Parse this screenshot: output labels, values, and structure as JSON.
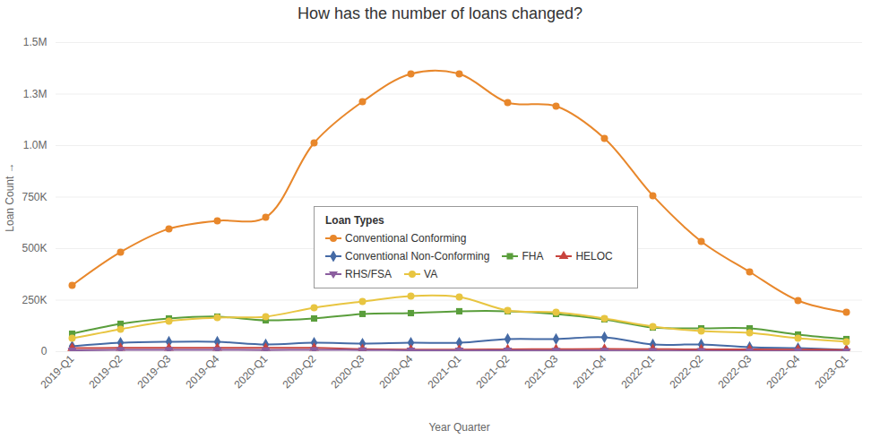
{
  "chart_data": {
    "type": "line",
    "title": "How has the number of loans changed?",
    "x_label": "Year Quarter",
    "y_label": "Loan Count",
    "legend_title": "Loan Types",
    "legend": "center",
    "grid": true,
    "categories": [
      "2019-Q1",
      "2019-Q2",
      "2019-Q3",
      "2019-Q4",
      "2020-Q1",
      "2020-Q2",
      "2020-Q3",
      "2020-Q4",
      "2021-Q1",
      "2021-Q2",
      "2021-Q3",
      "2021-Q4",
      "2022-Q1",
      "2022-Q2",
      "2022-Q3",
      "2022-Q4",
      "2023-Q1"
    ],
    "ylim": [
      0,
      1500000
    ],
    "yticks": [
      0,
      {
        "value": 250000,
        "label": "250K"
      },
      {
        "value": 500000,
        "label": "500K"
      },
      {
        "value": 750000,
        "label": "750K"
      },
      {
        "value": 1000000,
        "label": "1.0M"
      },
      {
        "value": 1250000,
        "label": "1.3M"
      },
      {
        "value": 1500000,
        "label": "1.5M"
      }
    ],
    "series": [
      {
        "name": "Conventional Conforming",
        "color": "#e8872b",
        "marker": "circle",
        "values": [
          322000,
          483000,
          596000,
          635000,
          652000,
          1013000,
          1213000,
          1348000,
          1348000,
          1209000,
          1191000,
          1035000,
          757000,
          535000,
          387000,
          248000,
          191000
        ]
      },
      {
        "name": "Conventional Non-Conforming",
        "color": "#456aa5",
        "marker": "diamond",
        "values": [
          26000,
          43000,
          48000,
          48000,
          35000,
          43000,
          39000,
          43000,
          43000,
          61000,
          61000,
          70000,
          35000,
          35000,
          22000,
          17000,
          9000
        ]
      },
      {
        "name": "FHA",
        "color": "#5a9e3c",
        "marker": "square",
        "values": [
          87000,
          135000,
          161000,
          170000,
          152000,
          161000,
          183000,
          187000,
          196000,
          196000,
          183000,
          157000,
          117000,
          113000,
          113000,
          83000,
          61000
        ]
      },
      {
        "name": "HELOC",
        "color": "#c8443e",
        "marker": "triangle",
        "values": [
          17000,
          18000,
          18000,
          18000,
          18000,
          18000,
          12000,
          10000,
          10000,
          11000,
          12000,
          13000,
          12000,
          11000,
          11000,
          10000,
          8000
        ]
      },
      {
        "name": "RHS/FSA",
        "color": "#8b5e9f",
        "marker": "triangle-down",
        "values": [
          6000,
          9000,
          9000,
          9000,
          8000,
          9000,
          8000,
          7000,
          6000,
          6000,
          5000,
          5000,
          4000,
          4000,
          3000,
          3000,
          2000
        ]
      },
      {
        "name": "VA",
        "color": "#e8c541",
        "marker": "circle",
        "values": [
          65000,
          109000,
          148000,
          165000,
          170000,
          213000,
          243000,
          270000,
          265000,
          200000,
          191000,
          161000,
          122000,
          100000,
          91000,
          65000,
          48000
        ]
      }
    ]
  }
}
